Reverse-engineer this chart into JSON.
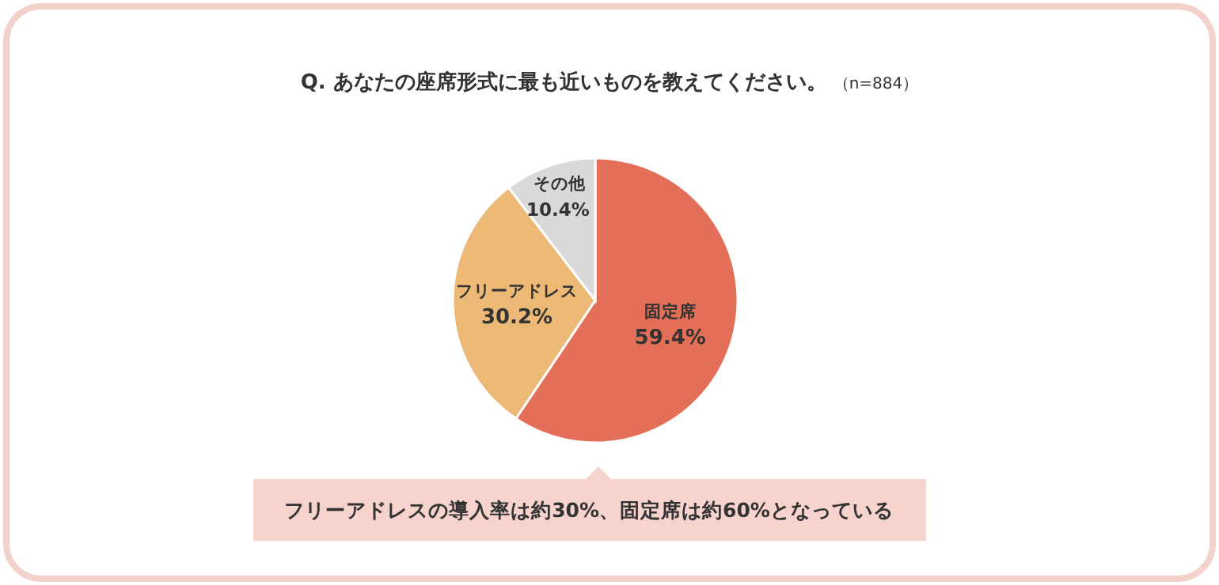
{
  "chart_data": {
    "type": "pie",
    "title": "Q. あなたの座席形式に最も近いものを教えてください。",
    "subtitle": "（n=884）",
    "categories": [
      "固定席",
      "フリーアドレス",
      "その他"
    ],
    "values": [
      59.4,
      30.2,
      10.4
    ],
    "value_labels": [
      "59.4%",
      "30.2%",
      "10.4%"
    ],
    "colors": [
      "#e46f58",
      "#edb977",
      "#d9d9d9"
    ],
    "annotations": [
      "フリーアドレスの導入率は約30%、固定席は約60%となっている"
    ],
    "legend": false
  }
}
